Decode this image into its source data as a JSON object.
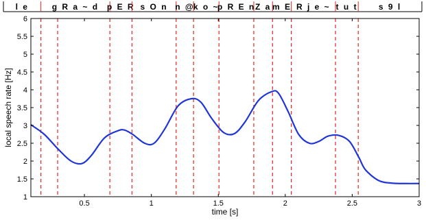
{
  "chart_data": {
    "type": "line",
    "title": "",
    "xlabel": "time [s]",
    "ylabel": "local speech rate [Hz]",
    "xlim": [
      0.1,
      3.0
    ],
    "ylim": [
      1,
      6
    ],
    "grid": false,
    "x_ticks": [
      0.5,
      1,
      1.5,
      2,
      2.5,
      3
    ],
    "x_tick_labels": [
      "0.5",
      "1",
      "1.5",
      "2",
      "2.5",
      "3"
    ],
    "y_ticks": [
      1,
      1.5,
      2,
      2.5,
      3,
      3.5,
      4,
      4.5,
      5,
      5.5,
      6
    ],
    "y_tick_labels": [
      "1",
      "1.5",
      "2",
      "2.5",
      "3",
      "3.5",
      "4",
      "4.5",
      "5",
      "5.5",
      "6"
    ],
    "boundaries_color": "#e8231f",
    "line_color": "#1f35d8",
    "segment_boundaries": [
      0.3,
      0.175,
      0.69,
      0.855,
      1.185,
      1.315,
      1.505,
      1.765,
      1.905,
      2.045,
      2.375,
      2.545
    ],
    "segment_labels": [
      {
        "text": "l e",
        "start": 0.0,
        "end": 0.175
      },
      {
        "text": "g R a ~ d",
        "start": 0.175,
        "end": 0.69
      },
      {
        "text": "p E R",
        "start": 0.69,
        "end": 0.855
      },
      {
        "text": "s O n",
        "start": 0.855,
        "end": 1.185
      },
      {
        "text": "n @",
        "start": 1.185,
        "end": 1.315
      },
      {
        "text": "k o ~",
        "start": 1.315,
        "end": 1.505
      },
      {
        "text": "p R E n",
        "start": 1.505,
        "end": 1.765
      },
      {
        "text": "Z a",
        "start": 1.765,
        "end": 1.905
      },
      {
        "text": "m E",
        "start": 1.905,
        "end": 2.045
      },
      {
        "text": "R j e ~",
        "start": 2.045,
        "end": 2.375
      },
      {
        "text": "t u t",
        "start": 2.375,
        "end": 2.545
      },
      {
        "text": "s 9 l",
        "start": 2.545,
        "end": 3.0
      }
    ],
    "series": [
      {
        "x": [
          0.1,
          0.2,
          0.3,
          0.4,
          0.48,
          0.55,
          0.65,
          0.75,
          0.8,
          0.86,
          0.95,
          1.02,
          1.1,
          1.2,
          1.3,
          1.37,
          1.45,
          1.54,
          1.62,
          1.7,
          1.8,
          1.9,
          1.95,
          2.02,
          2.1,
          2.18,
          2.25,
          2.32,
          2.4,
          2.48,
          2.55,
          2.6,
          2.7,
          2.8,
          2.9,
          3.0
        ],
        "y": [
          3.02,
          2.75,
          2.35,
          2.0,
          1.93,
          2.15,
          2.65,
          2.85,
          2.87,
          2.75,
          2.5,
          2.5,
          2.9,
          3.55,
          3.75,
          3.65,
          3.2,
          2.8,
          2.77,
          3.1,
          3.7,
          3.95,
          3.9,
          3.4,
          2.75,
          2.5,
          2.55,
          2.7,
          2.72,
          2.55,
          2.1,
          1.75,
          1.45,
          1.38,
          1.37,
          1.37
        ]
      }
    ]
  }
}
